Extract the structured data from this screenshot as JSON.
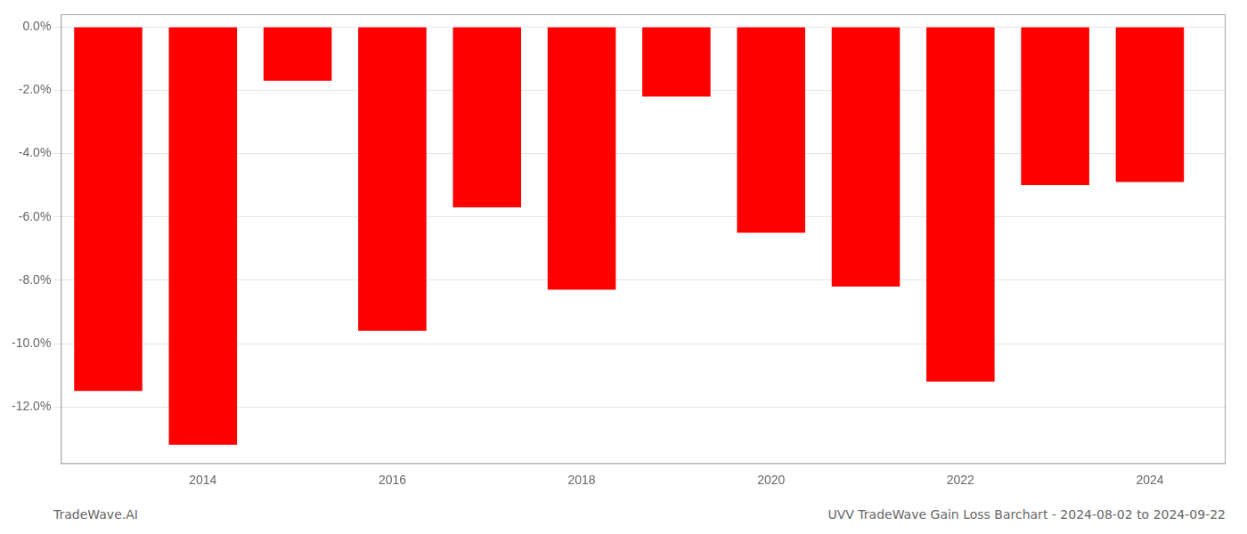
{
  "chart_data": {
    "type": "bar",
    "x": [
      2013,
      2014,
      2015,
      2016,
      2017,
      2018,
      2019,
      2020,
      2021,
      2022,
      2023,
      2024
    ],
    "values": [
      -11.5,
      -13.2,
      -1.7,
      -9.6,
      -5.7,
      -8.3,
      -2.2,
      -6.5,
      -8.2,
      -11.2,
      -5.0,
      -4.9
    ],
    "color": "#ff0000",
    "xlim": [
      2012.5,
      2024.8
    ],
    "xticks": [
      2014,
      2016,
      2018,
      2020,
      2022,
      2024
    ],
    "ylim": [
      -13.8,
      0.4
    ],
    "yticks": [
      {
        "value": 0.0,
        "label": "0.0%"
      },
      {
        "value": -2.0,
        "label": "-2.0%"
      },
      {
        "value": -4.0,
        "label": "-4.0%"
      },
      {
        "value": -6.0,
        "label": "-6.0%"
      },
      {
        "value": -8.0,
        "label": "-8.0%"
      },
      {
        "value": -10.0,
        "label": "-10.0%"
      },
      {
        "value": -12.0,
        "label": "-12.0%"
      }
    ],
    "grid": "y",
    "annotations": [
      "TradeWave.AI",
      "UVV TradeWave Gain Loss Barchart - 2024-08-02 to 2024-09-22"
    ]
  }
}
